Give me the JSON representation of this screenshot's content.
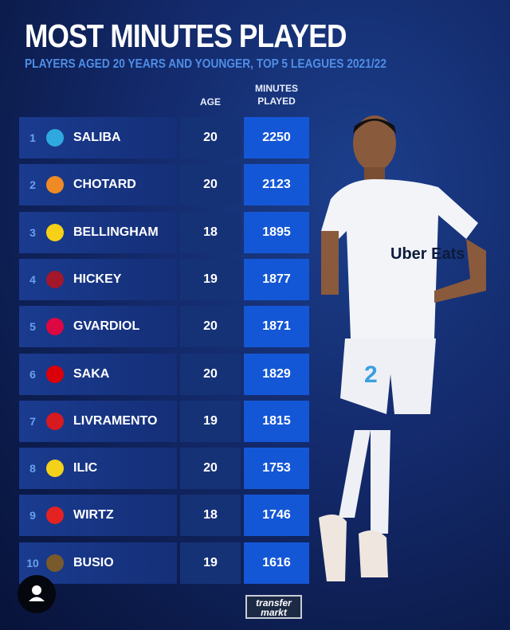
{
  "chart_data": {
    "type": "table",
    "title": "MOST MINUTES PLAYED",
    "subtitle": "PLAYERS AGED 20 YEARS AND YOUNGER, TOP 5 LEAGUES 2021/22",
    "columns": [
      "AGE",
      "MINUTES PLAYED"
    ],
    "column_header_lines": {
      "age": "AGE",
      "minutes_1": "MINUTES",
      "minutes_2": "PLAYED"
    },
    "rows": [
      {
        "rank": "1",
        "name": "SALIBA",
        "age": "20",
        "minutes": "2250",
        "crest": "marseille",
        "crest_color": "#2fa8e0"
      },
      {
        "rank": "2",
        "name": "CHOTARD",
        "age": "20",
        "minutes": "2123",
        "crest": "montpellier",
        "crest_color": "#f08a24"
      },
      {
        "rank": "3",
        "name": "BELLINGHAM",
        "age": "18",
        "minutes": "1895",
        "crest": "bvb",
        "crest_color": "#f7d117"
      },
      {
        "rank": "4",
        "name": "HICKEY",
        "age": "19",
        "minutes": "1877",
        "crest": "bologna",
        "crest_color": "#a3172b"
      },
      {
        "rank": "5",
        "name": "GVARDIOL",
        "age": "20",
        "minutes": "1871",
        "crest": "leipzig",
        "crest_color": "#dd0741"
      },
      {
        "rank": "6",
        "name": "SAKA",
        "age": "20",
        "minutes": "1829",
        "crest": "arsenal",
        "crest_color": "#db0007"
      },
      {
        "rank": "7",
        "name": "LIVRAMENTO",
        "age": "19",
        "minutes": "1815",
        "crest": "southampton",
        "crest_color": "#d71920"
      },
      {
        "rank": "8",
        "name": "ILIC",
        "age": "20",
        "minutes": "1753",
        "crest": "verona",
        "crest_color": "#f4d21a"
      },
      {
        "rank": "9",
        "name": "WIRTZ",
        "age": "18",
        "minutes": "1746",
        "crest": "leverkusen",
        "crest_color": "#e32221"
      },
      {
        "rank": "10",
        "name": "BUSIO",
        "age": "19",
        "minutes": "1616",
        "crest": "venezia",
        "crest_color": "#7a5a2a"
      }
    ]
  },
  "branding": {
    "logo_line1": "transfer",
    "logo_line2": "markt",
    "jersey_text": "Uber Eats",
    "jersey_number": "2"
  },
  "colors": {
    "minutes_cell": "#1457d6",
    "subtitle": "#4f8ee6",
    "background": "#13296a"
  }
}
